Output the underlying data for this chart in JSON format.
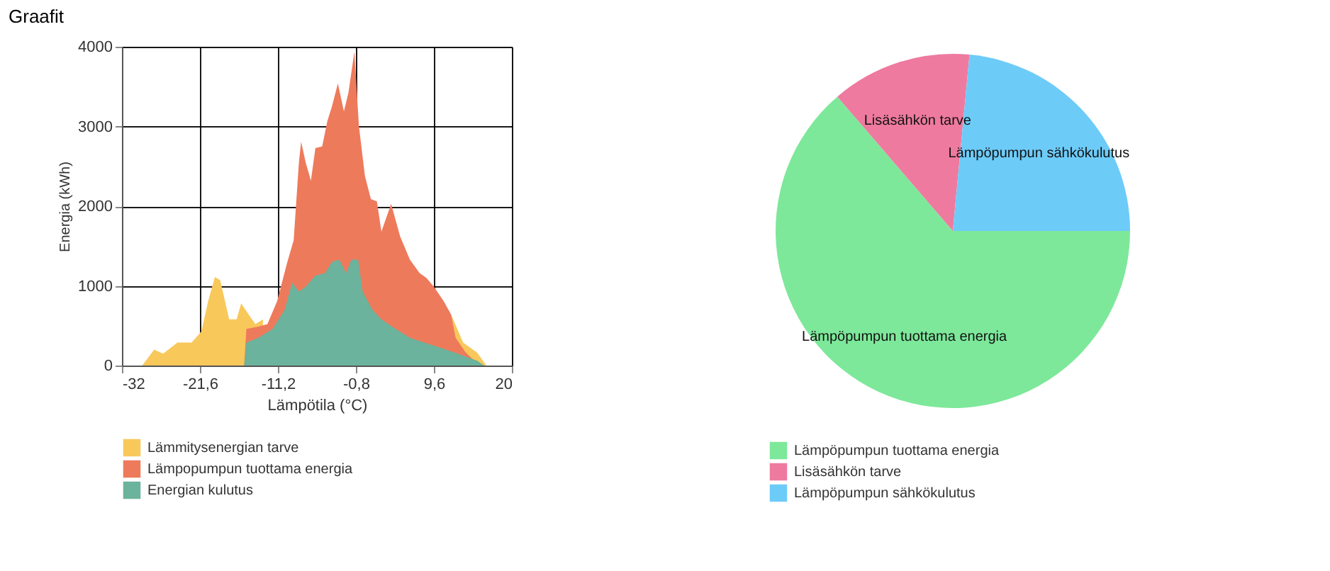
{
  "chart_data": [
    {
      "type": "area",
      "title": "Graafit",
      "xlabel": "Lämpötila (°C)",
      "ylabel": "Energia (kWh)",
      "xlim": [
        -32,
        20
      ],
      "xticks": [
        -32,
        {
          "value": -21.6,
          "label": "-21,6"
        },
        {
          "value": -11.2,
          "label": "-11,2"
        },
        {
          "value": -0.8,
          "label": "-0,8"
        },
        {
          "value": 9.6,
          "label": "9,6"
        },
        20
      ],
      "ylim": [
        0,
        4000
      ],
      "yticks": [
        0,
        1000,
        2000,
        3000,
        4000
      ],
      "grid": true,
      "legend": "bottom",
      "series": [
        {
          "name": "Lämmitysenergian tarve",
          "color": "#f8c85a",
          "x": [
            -29.3,
            -27.7,
            -26.5,
            -24.6,
            -22.7,
            -21.4,
            -20.5,
            -19.6,
            -18.9,
            -17.7,
            -16.7,
            -16.1,
            -15.1,
            -14.2,
            -13.2,
            -12.6,
            0,
            11.9,
            13.5,
            15.4,
            16.6
          ],
          "values": [
            0,
            200,
            150,
            290,
            290,
            430,
            810,
            1110,
            1070,
            580,
            580,
            780,
            640,
            520,
            580,
            null,
            null,
            640,
            290,
            160,
            0
          ]
        },
        {
          "name": "Lämpopumpun tuottama energia",
          "color": "#ee7a5c",
          "x": [
            -15.7,
            -15.4,
            -13.8,
            -12.6,
            -11.3,
            -10,
            -9.1,
            -8.4,
            -8.1,
            -7.5,
            -6.8,
            -6.2,
            -5.3,
            -4.6,
            -4,
            -3.2,
            -2.4,
            -1.8,
            -1,
            -0.4,
            0.4,
            1.2,
            2,
            2.6,
            3.9,
            5.1,
            6.4,
            7.7,
            8.6,
            9.6,
            10.9,
            11.9,
            12.5,
            13.8,
            15,
            15.7
          ],
          "values": [
            0,
            460,
            490,
            520,
            810,
            1280,
            1570,
            2550,
            2810,
            2550,
            2320,
            2730,
            2750,
            3070,
            3250,
            3540,
            3190,
            3420,
            3940,
            3010,
            2380,
            2090,
            2060,
            1680,
            2030,
            1620,
            1330,
            1160,
            1100,
            990,
            810,
            640,
            350,
            170,
            60,
            0
          ]
        },
        {
          "name": "Energian kulutus",
          "color": "#6bb39c",
          "x": [
            -15.7,
            -15.4,
            -13.8,
            -11.9,
            -10.3,
            -9.3,
            -8.4,
            -7.5,
            -6.2,
            -4.9,
            -4,
            -3,
            -2.1,
            -1.4,
            -0.5,
            0.1,
            1.4,
            2.6,
            4.5,
            6.4,
            8.3,
            10.3,
            12.8,
            15.4,
            16.3
          ],
          "values": [
            0,
            290,
            350,
            460,
            700,
            1040,
            930,
            990,
            1130,
            1160,
            1300,
            1330,
            1160,
            1330,
            1330,
            930,
            700,
            580,
            460,
            350,
            290,
            230,
            150,
            60,
            0
          ]
        }
      ]
    },
    {
      "type": "pie",
      "categories": [
        "Lämpöpumpun tuottama energia",
        "Lisäsähkön tarve",
        "Lämpöpumpun sähkökulutus"
      ],
      "values": [
        63.7,
        12.8,
        23.5
      ],
      "colors": [
        "#7de89a",
        "#ee7aa0",
        "#6dcbf8"
      ],
      "legend": "bottom"
    }
  ]
}
